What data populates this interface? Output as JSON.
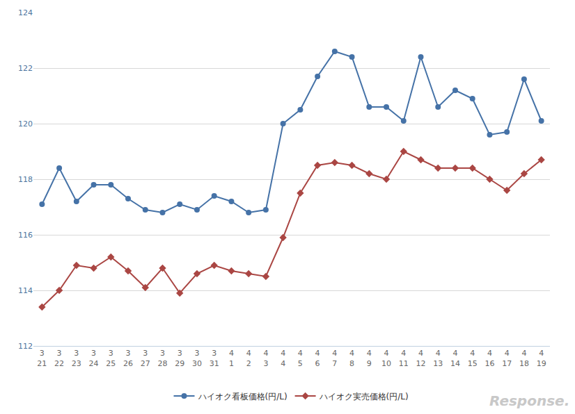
{
  "chart_data": {
    "type": "line",
    "categories": [
      "3\n21",
      "3\n22",
      "3\n23",
      "3\n24",
      "3\n25",
      "3\n26",
      "3\n27",
      "3\n28",
      "3\n29",
      "3\n30",
      "3\n31",
      "4\n1",
      "4\n2",
      "4\n3",
      "4\n4",
      "4\n5",
      "4\n6",
      "4\n7",
      "4\n8",
      "4\n9",
      "4\n10",
      "4\n11",
      "4\n12",
      "4\n13",
      "4\n14",
      "4\n15",
      "4\n16",
      "4\n17",
      "4\n18",
      "4\n19"
    ],
    "series": [
      {
        "name": "ハイオク看板価格(円/L)",
        "color": "#4572a7",
        "marker": "circle",
        "values": [
          117.1,
          118.4,
          117.2,
          117.8,
          117.8,
          117.3,
          116.9,
          116.8,
          117.1,
          116.9,
          117.4,
          117.2,
          116.8,
          116.9,
          120.0,
          120.5,
          121.7,
          122.6,
          122.4,
          120.6,
          120.6,
          120.1,
          122.4,
          120.6,
          121.2,
          120.9,
          119.6,
          119.7,
          121.6,
          120.1
        ]
      },
      {
        "name": "ハイオク実売価格(円/L)",
        "color": "#aa4643",
        "marker": "diamond",
        "values": [
          113.4,
          114.0,
          114.9,
          114.8,
          115.2,
          114.7,
          114.1,
          114.8,
          113.9,
          114.6,
          114.9,
          114.7,
          114.6,
          114.5,
          115.9,
          117.5,
          118.5,
          118.6,
          118.5,
          118.2,
          118.0,
          119.0,
          118.7,
          118.4,
          118.4,
          118.4,
          118.0,
          117.6,
          118.2,
          118.7
        ]
      }
    ],
    "ylim": [
      112,
      124
    ],
    "yticks": [
      112,
      114,
      116,
      118,
      120,
      122,
      124
    ],
    "grid": true,
    "legend": "bottom",
    "annotations": [
      "Response."
    ]
  }
}
